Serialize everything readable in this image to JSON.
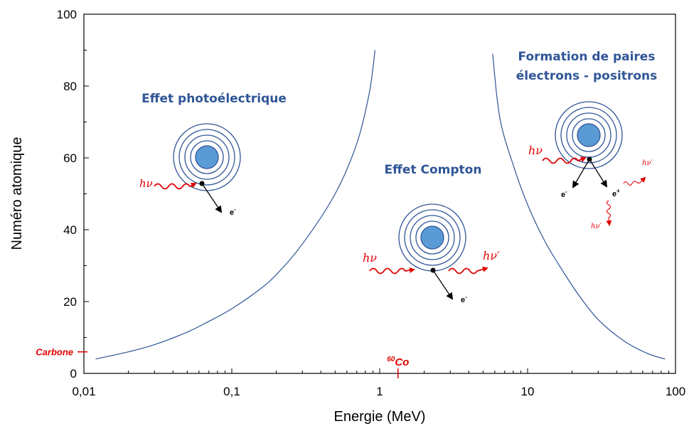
{
  "chart_data": {
    "type": "line",
    "xlabel": "Energie (MeV)",
    "ylabel": "Numéro atomique",
    "xscale": "log",
    "xlim": [
      0.01,
      100
    ],
    "ylim": [
      0,
      100
    ],
    "x_ticks": [
      "0,01",
      "0,1",
      "1",
      "10",
      "100"
    ],
    "y_ticks": [
      "0",
      "20",
      "40",
      "60",
      "80",
      "100"
    ],
    "series": [
      {
        "x": [
          0.012,
          0.02,
          0.03,
          0.05,
          0.07,
          0.1,
          0.15,
          0.2,
          0.3,
          0.5,
          0.7,
          0.85,
          0.93
        ],
        "y": [
          4,
          6,
          8,
          11.5,
          14.5,
          18,
          23,
          27.5,
          36,
          50,
          64,
          78,
          90
        ]
      },
      {
        "x": [
          5.8,
          6.5,
          8,
          10,
          13,
          17,
          22,
          30,
          45,
          65,
          85
        ],
        "y": [
          89,
          71,
          58,
          47,
          37,
          29,
          22,
          15,
          9,
          5.5,
          4
        ]
      }
    ],
    "annotations": {
      "photo": "Effet photoélectrique",
      "compton": "Effet Compton",
      "pairs_line1": "Formation de paires",
      "pairs_line2": "électrons - positrons",
      "hv": "hν",
      "hv_prime": "hν′",
      "electron": "e",
      "minus": "-",
      "plus": "+",
      "carbone": "Carbone",
      "carbone_z": 6,
      "cobalt_mass": "60",
      "cobalt_symbol": "Co",
      "cobalt_energy": 1.33
    },
    "colors": {
      "curve": "#2f5597",
      "region_text": "#2f5597",
      "nucleus": "#5b9bd5",
      "photon": "#e00000",
      "marker": "#e00000"
    },
    "grid": false
  }
}
